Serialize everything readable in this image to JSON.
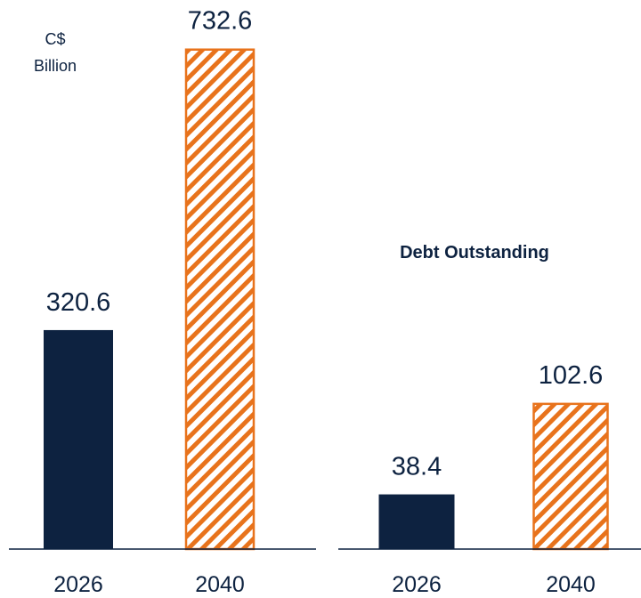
{
  "chart_data": [
    {
      "type": "bar",
      "ylabel": [
        "C$",
        "Billion"
      ],
      "categories": [
        "2026",
        "2040"
      ],
      "values": [
        320.6,
        732.6
      ],
      "colors": [
        "#0d2240",
        "#e8731c"
      ],
      "hatch": [
        false,
        true
      ],
      "ylim": [
        0,
        800
      ]
    },
    {
      "type": "bar",
      "title": "Debt Outstanding",
      "categories": [
        "2026",
        "2040"
      ],
      "values": [
        38.4,
        102.6
      ],
      "colors": [
        "#0d2240",
        "#e8731c"
      ],
      "hatch": [
        false,
        true
      ],
      "ylim": [
        0,
        380
      ]
    }
  ]
}
